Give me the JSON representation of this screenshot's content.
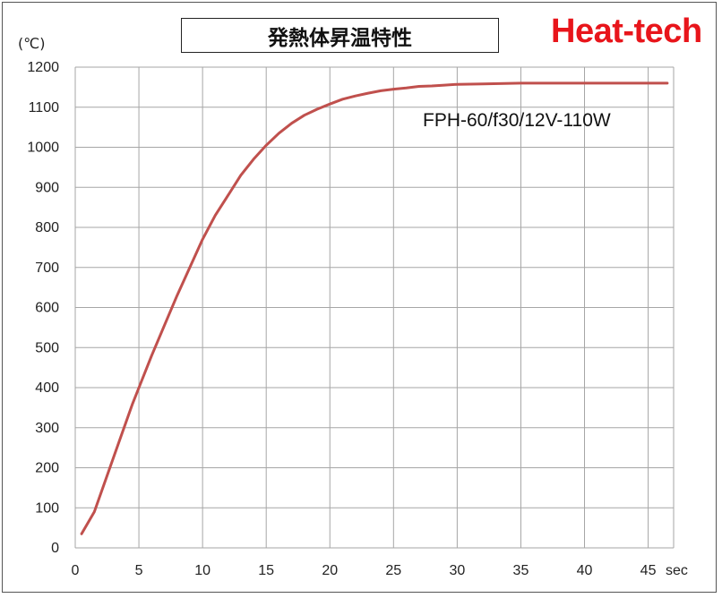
{
  "title": "発熱体昇温特性",
  "brand": "Heat-tech",
  "annotation": "FPH-60/f30/12V-110W",
  "colors": {
    "line": "#c0504d",
    "brand": "#e8151b",
    "grid": "#a6a6a6"
  },
  "chart_data": {
    "type": "line",
    "y_unit_label": "(℃)",
    "x_unit_label": "sec",
    "xlim": [
      0,
      47
    ],
    "ylim": [
      0,
      1200
    ],
    "x_ticks": [
      0,
      5,
      10,
      15,
      20,
      25,
      30,
      35,
      40,
      45
    ],
    "y_ticks": [
      0,
      100,
      200,
      300,
      400,
      500,
      600,
      700,
      800,
      900,
      1000,
      1100,
      1200
    ],
    "grid": true,
    "series": [
      {
        "x": [
          0.5,
          1.5,
          2.5,
          3.5,
          4.5,
          5,
          6,
          7,
          8,
          9,
          10,
          11,
          12,
          13,
          14,
          15,
          16,
          17,
          18,
          19,
          20,
          21,
          22,
          23,
          24,
          25,
          26,
          27,
          28,
          29,
          30,
          32,
          35,
          40,
          45,
          46.5
        ],
        "y": [
          35,
          90,
          180,
          270,
          360,
          400,
          480,
          555,
          630,
          700,
          770,
          830,
          880,
          930,
          970,
          1005,
          1035,
          1060,
          1080,
          1095,
          1108,
          1120,
          1128,
          1135,
          1141,
          1145,
          1148,
          1152,
          1153,
          1155,
          1157,
          1158,
          1160,
          1160,
          1160,
          1160
        ]
      }
    ]
  }
}
